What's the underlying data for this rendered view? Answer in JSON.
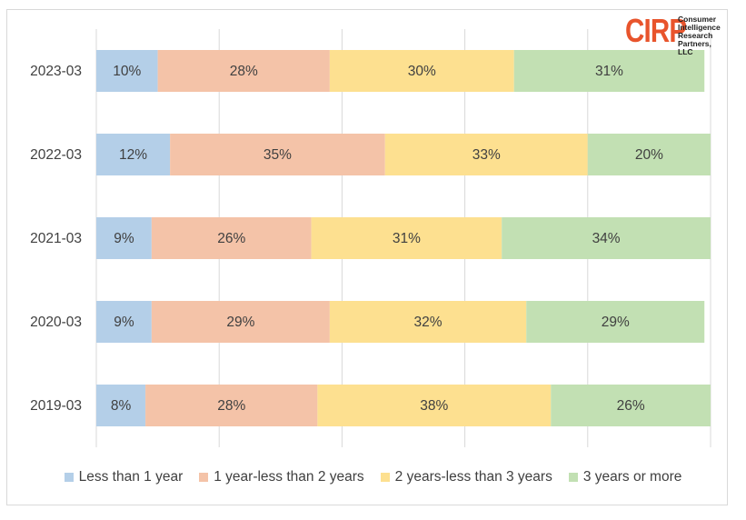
{
  "logo": {
    "mark": "CIRP",
    "subtitle": "Consumer\nIntelligence\nResearch\nPartners, LLC"
  },
  "colors": {
    "less_than_1_year": "#b4cfe8",
    "one_to_two_years": "#f4c3a8",
    "two_to_three_years": "#fde090",
    "three_plus_years": "#c2e0b3",
    "gridline": "#d9d9d9",
    "text": "#404040"
  },
  "chart_data": {
    "type": "bar",
    "orientation": "horizontal",
    "stacked": true,
    "categories": [
      "2023-03",
      "2022-03",
      "2021-03",
      "2020-03",
      "2019-03"
    ],
    "series": [
      {
        "name": "Less than 1 year",
        "values": [
          10,
          12,
          9,
          9,
          8
        ]
      },
      {
        "name": "1 year-less than 2 years",
        "values": [
          28,
          35,
          26,
          29,
          28
        ]
      },
      {
        "name": "2 years-less than 3 years",
        "values": [
          30,
          33,
          31,
          32,
          38
        ]
      },
      {
        "name": "3 years or more",
        "values": [
          31,
          20,
          34,
          29,
          26
        ]
      }
    ],
    "value_suffix": "%",
    "xlim": [
      0,
      100
    ],
    "grid": true,
    "legend": "bottom"
  }
}
